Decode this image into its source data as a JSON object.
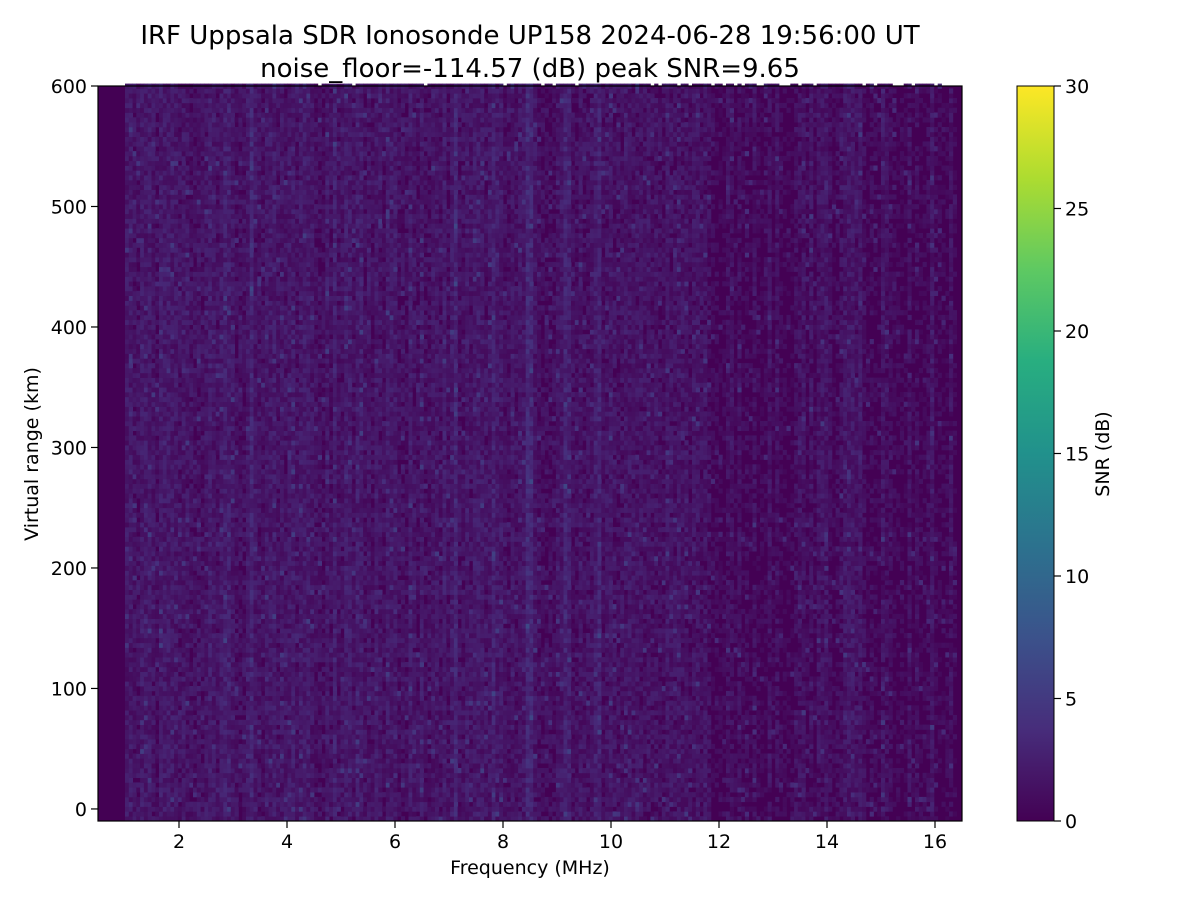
{
  "figure": {
    "title_line1": "IRF Uppsala SDR Ionosonde UP158 2024-06-28 19:56:00  UT",
    "title_line2": "noise_floor=-114.57 (dB) peak SNR=9.65"
  },
  "chart_data": {
    "type": "heatmap",
    "title": "IRF Uppsala SDR Ionosonde UP158 2024-06-28 19:56:00  UT",
    "subtitle": "noise_floor=-114.57 (dB) peak SNR=9.65",
    "xlabel": "Frequency (MHz)",
    "ylabel": "Virtual range (km)",
    "xlim": [
      0.5,
      16.5
    ],
    "ylim": [
      -10,
      600
    ],
    "x_ticks": [
      2,
      4,
      6,
      8,
      10,
      12,
      14,
      16
    ],
    "y_ticks": [
      0,
      100,
      200,
      300,
      400,
      500,
      600
    ],
    "x_tick_labels": [
      "2",
      "4",
      "6",
      "8",
      "10",
      "12",
      "14",
      "16"
    ],
    "y_tick_labels": [
      "0",
      "100",
      "200",
      "300",
      "400",
      "500",
      "600"
    ],
    "data_extent": {
      "freq_mhz": [
        0.5,
        16.4
      ],
      "range_km": [
        -10,
        600
      ]
    },
    "peak_snr_db": 9.65,
    "noise_floor_db": -114.57,
    "colormap": "viridis",
    "colorbar": {
      "label": "SNR (dB)",
      "min": 0,
      "max": 30,
      "ticks": [
        0,
        5,
        10,
        15,
        20,
        25,
        30
      ],
      "tick_labels": [
        "0",
        "5",
        "10",
        "15",
        "20",
        "25",
        "30"
      ]
    },
    "notable_traces_mhz": [
      2.55,
      2.85,
      3.3,
      4.85,
      7.1,
      7.8,
      8.45,
      9.15,
      9.7
    ]
  }
}
